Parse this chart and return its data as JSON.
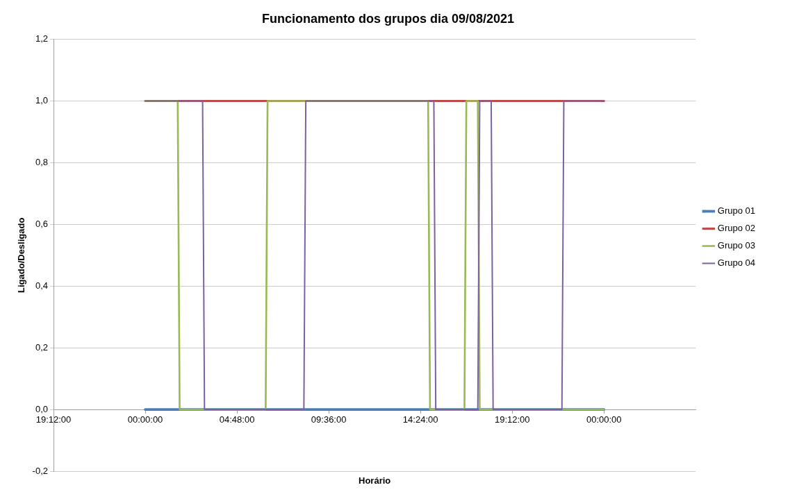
{
  "chart_data": {
    "type": "line",
    "title": "Funcionamento dos grupos dia 09/08/2021",
    "xlabel": "Horário",
    "ylabel": "Ligado/Desligado",
    "xlim": [
      "2021-08-08T19:12",
      "2021-08-10T04:48"
    ],
    "xticks": [
      {
        "value": "2021-08-08T19:12",
        "label": "19:12:00"
      },
      {
        "value": "2021-08-09T00:00",
        "label": "00:00:00"
      },
      {
        "value": "2021-08-09T04:48",
        "label": "04:48:00"
      },
      {
        "value": "2021-08-09T09:36",
        "label": "09:36:00"
      },
      {
        "value": "2021-08-09T14:24",
        "label": "14:24:00"
      },
      {
        "value": "2021-08-09T19:12",
        "label": "19:12:00"
      },
      {
        "value": "2021-08-10T00:00",
        "label": "00:00:00"
      }
    ],
    "ylim": [
      -0.2,
      1.2
    ],
    "yticks": [
      {
        "value": -0.2,
        "label": "-0,2"
      },
      {
        "value": 0,
        "label": "0,0"
      },
      {
        "value": 0.2,
        "label": "0,2"
      },
      {
        "value": 0.4,
        "label": "0,4"
      },
      {
        "value": 0.6,
        "label": "0,6"
      },
      {
        "value": 0.8,
        "label": "0,8"
      },
      {
        "value": 1,
        "label": "1,0"
      },
      {
        "value": 1.2,
        "label": "1,2"
      }
    ],
    "grid": "y",
    "legend": "right",
    "marker": "none",
    "line_style": "solid",
    "series": [
      {
        "name": "Grupo 01",
        "color": "#4a7ebb",
        "x": [
          "2021-08-09T00:00",
          "2021-08-10T00:00"
        ],
        "values": [
          0,
          0
        ]
      },
      {
        "name": "Grupo 02",
        "color": "#be4b48",
        "x": [
          "2021-08-09T00:00",
          "2021-08-10T00:00"
        ],
        "values": [
          1,
          1
        ]
      },
      {
        "name": "Grupo 03",
        "color": "#98b954",
        "x": [
          "2021-08-09T00:00",
          "2021-08-09T01:42",
          "2021-08-09T01:48",
          "2021-08-09T06:18",
          "2021-08-09T06:24",
          "2021-08-09T14:48",
          "2021-08-09T14:54",
          "2021-08-09T16:42",
          "2021-08-09T16:48",
          "2021-08-09T17:24",
          "2021-08-09T17:30",
          "2021-08-10T00:00"
        ],
        "values": [
          1,
          1,
          0,
          0,
          1,
          1,
          0,
          0,
          1,
          1,
          0,
          0
        ]
      },
      {
        "name": "Grupo 04",
        "color": "#7d60a0",
        "x": [
          "2021-08-09T00:00",
          "2021-08-09T03:00",
          "2021-08-09T03:06",
          "2021-08-09T08:18",
          "2021-08-09T08:24",
          "2021-08-09T15:06",
          "2021-08-09T15:12",
          "2021-08-09T17:24",
          "2021-08-09T17:30",
          "2021-08-09T18:06",
          "2021-08-09T18:12",
          "2021-08-09T21:48",
          "2021-08-09T21:54",
          "2021-08-10T00:00"
        ],
        "values": [
          1,
          1,
          0,
          0,
          1,
          1,
          0,
          0,
          1,
          1,
          0,
          0,
          1,
          1
        ]
      }
    ]
  }
}
